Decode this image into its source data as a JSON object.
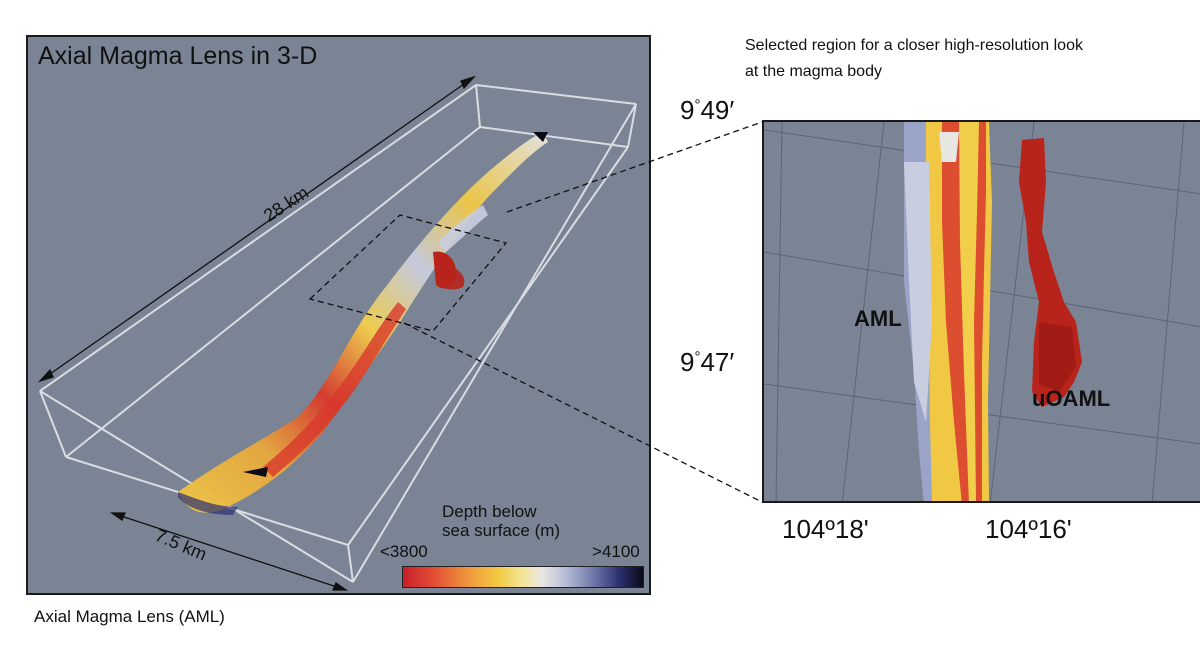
{
  "left_panel": {
    "title": "Axial Magma Lens in 3-D",
    "length_label": "28 km",
    "width_label": "7.5 km",
    "legend": {
      "title_line1": "Depth below",
      "title_line2": "sea surface (m)",
      "min_label": "<3800",
      "max_label": ">4100",
      "colors": [
        "#c8202a",
        "#e24a34",
        "#ef9a3d",
        "#f2cb42",
        "#f4e49a",
        "#e8e6e2",
        "#b5bcd6",
        "#6a73a6",
        "#2c3170",
        "#0a0a18"
      ]
    }
  },
  "captions": {
    "left": "Axial Magma Lens (AML)",
    "right_line1": "Selected region for a closer high-resolution look",
    "right_line2": "at the magma body"
  },
  "zoom_panel": {
    "aml_label": "AML",
    "uoaml_label": "uOAML",
    "lat_top": {
      "deg": "9",
      "sup": "°",
      "min": "49′"
    },
    "lat_mid": {
      "deg": "9",
      "sup": "°",
      "min": "47′"
    },
    "lon_left": "104º18'",
    "lon_right": "104º16'"
  },
  "colors": {
    "background_slate": "#7a8494",
    "magma_red": "#b8241c",
    "magma_yellow": "#f0c844",
    "magma_blue": "#9aa4c8"
  }
}
